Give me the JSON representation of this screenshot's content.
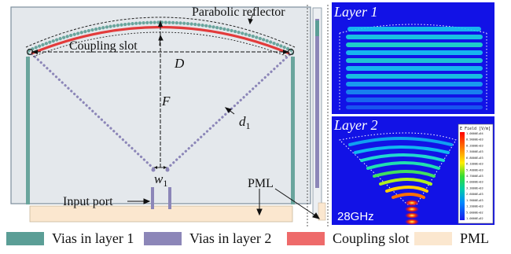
{
  "labels": {
    "parabolic_reflector": "Parabolic reflector",
    "coupling_slot": "Coupling slot",
    "D": "D",
    "F": "F",
    "d1_main": "d",
    "d1_sub": "1",
    "w1_main": "w",
    "w1_sub": "1",
    "input_port": "Input port",
    "pml": "PML"
  },
  "insets": {
    "layer1": "Layer 1",
    "layer2": "Layer 2",
    "frequency": "28GHz",
    "colorbar_title": "E Field [V/m]",
    "colorbar_ticks": [
      "1.0000E+04",
      "8.9000E+03",
      "8.2000E+03",
      "7.5000E+03",
      "6.8000E+03",
      "6.1000E+03",
      "5.4000E+03",
      "4.7000E+03",
      "4.0000E+03",
      "3.3000E+03",
      "2.6000E+03",
      "1.9000E+03",
      "1.2000E+03",
      "5.0000E+02",
      "1.0000E+02"
    ]
  },
  "legend": [
    {
      "label": "Vias in layer 1",
      "color": "#5b9e96"
    },
    {
      "label": "Vias in layer 2",
      "color": "#8c86b8"
    },
    {
      "label": "Coupling slot",
      "color": "#ee6a6a"
    },
    {
      "label": "PML",
      "color": "#fbe7cf"
    }
  ],
  "colors": {
    "substrate": "#e4e8ec",
    "substrate_border": "#7d8e9c",
    "layer1_via": "#6aa59d",
    "layer2_via": "#8c86b8",
    "slot": "#e23b3b",
    "pml": "#fbe7cf",
    "inset_bg": "#1010e6"
  }
}
